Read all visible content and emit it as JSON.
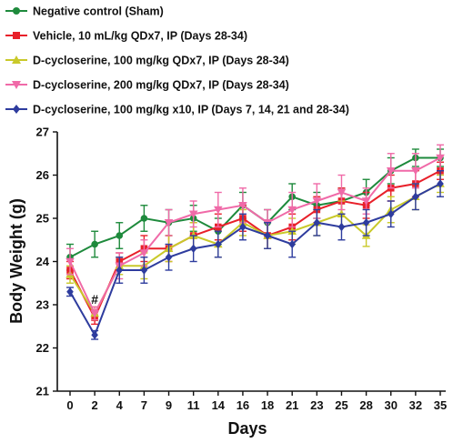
{
  "chart_data": {
    "type": "line",
    "title": "",
    "xlabel": "Days",
    "ylabel": "Body Weight (g)",
    "ylim": [
      21,
      27
    ],
    "yticks": [
      21,
      22,
      23,
      24,
      25,
      26,
      27
    ],
    "categories": [
      "0",
      "2",
      "4",
      "7",
      "9",
      "11",
      "14",
      "16",
      "18",
      "21",
      "23",
      "25",
      "28",
      "30",
      "32",
      "35"
    ],
    "legend_position": "top-left",
    "grid": false,
    "annotation": {
      "text": "#",
      "category": "2"
    },
    "series": [
      {
        "name": "Negative control (Sham)",
        "color": "#1e8a3c",
        "marker": "circle",
        "values": [
          24.1,
          24.4,
          24.6,
          25.0,
          24.9,
          25.0,
          24.7,
          25.3,
          24.9,
          25.5,
          25.3,
          25.4,
          25.6,
          26.1,
          26.4,
          26.4
        ],
        "errors": [
          0.3,
          0.3,
          0.3,
          0.3,
          0.3,
          0.3,
          0.3,
          0.3,
          0.3,
          0.3,
          0.3,
          0.3,
          0.3,
          0.3,
          0.2,
          0.2
        ]
      },
      {
        "name": "Vehicle, 10 mL/kg QDx7, IP (Days 28-34)",
        "color": "#e8202a",
        "marker": "square",
        "values": [
          23.8,
          22.7,
          24.0,
          24.3,
          24.3,
          24.6,
          24.8,
          25.0,
          24.6,
          24.8,
          25.2,
          25.4,
          25.3,
          25.7,
          25.8,
          26.1
        ],
        "errors": [
          0.2,
          0.15,
          0.2,
          0.3,
          0.3,
          0.3,
          0.3,
          0.3,
          0.3,
          0.3,
          0.3,
          0.3,
          0.3,
          0.3,
          0.3,
          0.2
        ]
      },
      {
        "name": "D-cycloserine, 100 mg/kg QDx7, IP (Days 28-34)",
        "color": "#c9c92a",
        "marker": "triangle-up",
        "values": [
          23.7,
          22.8,
          23.9,
          23.9,
          24.3,
          24.6,
          24.4,
          24.9,
          24.6,
          24.7,
          24.9,
          25.1,
          24.6,
          25.2,
          25.5,
          25.8
        ],
        "errors": [
          0.2,
          0.15,
          0.2,
          0.3,
          0.3,
          0.3,
          0.3,
          0.3,
          0.3,
          0.3,
          0.3,
          0.3,
          0.25,
          0.3,
          0.3,
          0.2
        ]
      },
      {
        "name": "D-cycloserine, 200 mg/kg QDx7, IP (Days 28-34)",
        "color": "#f06aa8",
        "marker": "triangle-down",
        "values": [
          24.0,
          22.8,
          23.9,
          24.2,
          24.9,
          25.1,
          25.2,
          25.3,
          24.9,
          25.2,
          25.4,
          25.6,
          25.4,
          26.1,
          26.1,
          26.4
        ],
        "errors": [
          0.3,
          0.15,
          0.3,
          0.3,
          0.3,
          0.3,
          0.4,
          0.4,
          0.3,
          0.4,
          0.4,
          0.4,
          0.3,
          0.4,
          0.4,
          0.3
        ]
      },
      {
        "name": "D-cycloserine, 100 mg/kg x10, IP (Days 7, 14, 21 and 28-34)",
        "color": "#2e3c9e",
        "marker": "diamond",
        "values": [
          23.3,
          22.3,
          23.8,
          23.8,
          24.1,
          24.3,
          24.4,
          24.8,
          24.6,
          24.4,
          24.9,
          24.8,
          24.9,
          25.1,
          25.5,
          25.8
        ],
        "errors": [
          0.1,
          0.1,
          0.3,
          0.3,
          0.3,
          0.3,
          0.3,
          0.3,
          0.3,
          0.3,
          0.3,
          0.3,
          0.3,
          0.3,
          0.3,
          0.3
        ]
      }
    ]
  }
}
